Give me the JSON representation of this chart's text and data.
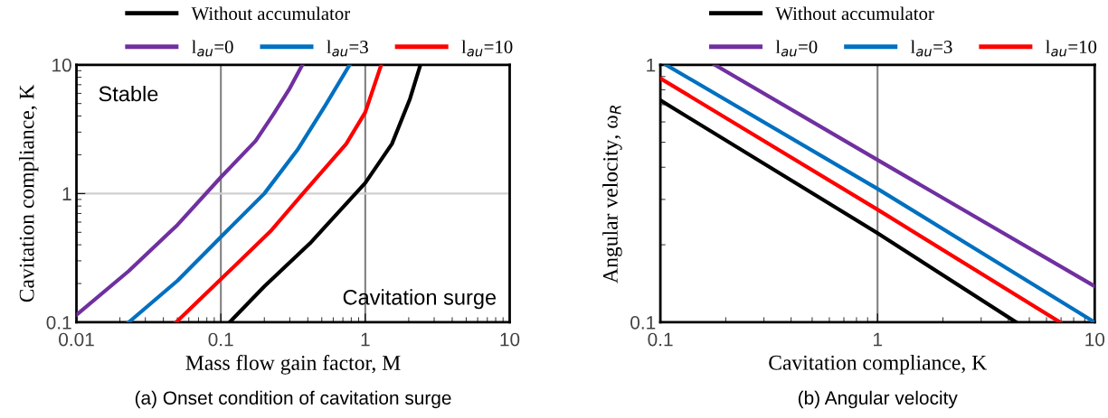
{
  "chart_data": [
    {
      "type": "line",
      "title": "(a) Onset condition of cavitation surge",
      "xlabel": "Mass flow gain factor, M",
      "ylabel": "Cavitation compliance, K",
      "log": "xy",
      "xlim": [
        0.01,
        10
      ],
      "ylim": [
        0.1,
        10
      ],
      "xticks": [
        0.01,
        0.1,
        1,
        10
      ],
      "yticks": [
        0.1,
        1,
        10
      ],
      "grid": false,
      "legend": "top",
      "annotations": [
        "Stable",
        "Cavitation surge"
      ],
      "ref_lines": [
        {
          "axis": "x",
          "value": 0.1,
          "color": "#808080"
        },
        {
          "axis": "x",
          "value": 1,
          "color": "#808080"
        },
        {
          "axis": "y",
          "value": 1,
          "color": "#d0d0d0"
        }
      ],
      "series": [
        {
          "name": "Without accumulator",
          "color": "#000000",
          "x": [
            0.115,
            0.2,
            0.414,
            1,
            1.53,
            2.04,
            2.41
          ],
          "values": [
            0.1,
            0.19,
            0.41,
            1.21,
            2.43,
            5.44,
            10
          ]
        },
        {
          "name": "l$_{au}$=0",
          "color": "#7030a0",
          "x": [
            0.01,
            0.023,
            0.05,
            0.1,
            0.174,
            0.232,
            0.296,
            0.367
          ],
          "values": [
            0.114,
            0.25,
            0.57,
            1.34,
            2.56,
            4.16,
            6.4,
            10
          ]
        },
        {
          "name": "l$_{au}$=3",
          "color": "#0070c0",
          "x": [
            0.023,
            0.05,
            0.1,
            0.2,
            0.339,
            0.532,
            0.78
          ],
          "values": [
            0.1,
            0.21,
            0.46,
            1,
            2.18,
            4.89,
            10
          ]
        },
        {
          "name": "l$_{au}$=10",
          "color": "#ff0000",
          "x": [
            0.049,
            0.1,
            0.221,
            0.37,
            0.738,
            1,
            1.29
          ],
          "values": [
            0.1,
            0.216,
            0.51,
            1,
            2.43,
            4.28,
            10
          ]
        }
      ]
    },
    {
      "type": "line",
      "title": "(b) Angular velocity",
      "xlabel": "Cavitation compliance, K",
      "ylabel": "Angular velocity, ω$_{R}$",
      "log": "xy",
      "xlim": [
        0.1,
        10
      ],
      "ylim": [
        0.1,
        1
      ],
      "xticks": [
        0.1,
        1,
        10
      ],
      "yticks": [
        0.1,
        1
      ],
      "grid": false,
      "legend": "top",
      "ref_lines": [
        {
          "axis": "x",
          "value": 1,
          "color": "#808080"
        }
      ],
      "series": [
        {
          "name": "Without accumulator",
          "color": "#000000",
          "x": [
            0.1,
            1,
            4.35
          ],
          "values": [
            0.728,
            0.222,
            0.1
          ]
        },
        {
          "name": "l$_{au}$=0",
          "color": "#7030a0",
          "x": [
            0.178,
            1,
            10
          ],
          "values": [
            1,
            0.427,
            0.138
          ]
        },
        {
          "name": "l$_{au}$=3",
          "color": "#0070c0",
          "x": [
            0.106,
            1,
            10
          ],
          "values": [
            1,
            0.33,
            0.1
          ]
        },
        {
          "name": "l$_{au}$=10",
          "color": "#ff0000",
          "x": [
            0.1,
            1,
            6.93
          ],
          "values": [
            0.886,
            0.274,
            0.1
          ]
        }
      ]
    }
  ]
}
